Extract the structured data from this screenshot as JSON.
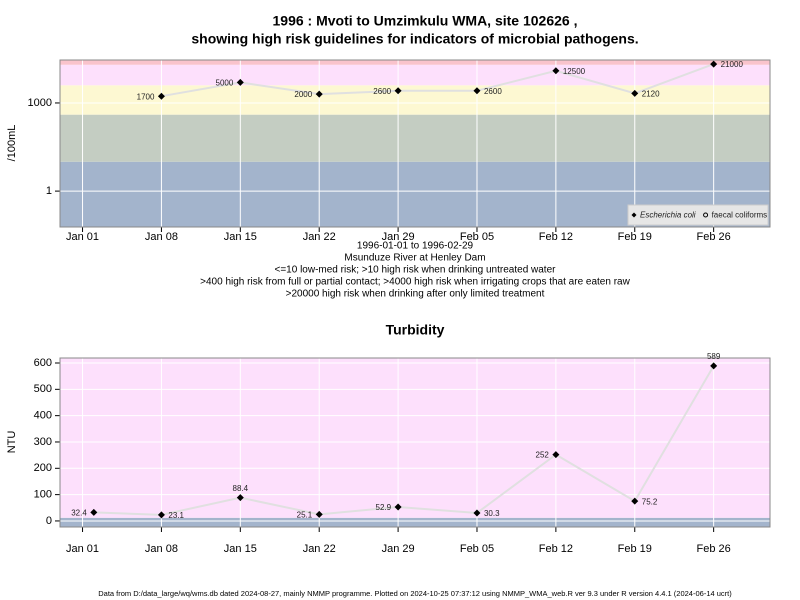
{
  "chart_data": [
    {
      "type": "line",
      "title": [
        "1996 : Mvoti to Umzimkulu WMA, site 102626 ,",
        "showing high risk guidelines for indicators of microbial pathogens."
      ],
      "notes": [
        "1996-01-01 to 1996-02-29",
        "Msunduze River at Henley Dam",
        "<=10 low-med risk; >10 high risk when drinking untreated water",
        ">400 high risk from full or partial contact; >4000 high risk when irrigating crops that are eaten raw",
        ">20000 high risk when drinking after only limited treatment"
      ],
      "ylabel": "/100mL",
      "log_scale": true,
      "x": [
        "1996-01-08",
        "1996-01-15",
        "1996-01-22",
        "1996-01-29",
        "1996-02-05",
        "1996-02-12",
        "1996-02-19",
        "1996-02-26"
      ],
      "series": [
        {
          "name": "Escherichia coli",
          "color": "#000000",
          "line_color": "#e0e0e0",
          "values": [
            1700,
            5000,
            2000,
            2600,
            2600,
            12500,
            2120,
            21000
          ]
        },
        {
          "name": "faecal coliforms",
          "color": "#000000",
          "line_color": "#e0e0e0",
          "values": [
            null,
            null,
            null,
            null,
            null,
            null,
            null,
            null
          ]
        }
      ],
      "xlim": [
        "1995-12-30",
        "1996-03-02"
      ],
      "xticks": [
        {
          "value": "1996-01-01",
          "label": "Jan 01"
        },
        {
          "value": "1996-01-08",
          "label": "Jan 08"
        },
        {
          "value": "1996-01-15",
          "label": "Jan 15"
        },
        {
          "value": "1996-01-22",
          "label": "Jan 22"
        },
        {
          "value": "1996-01-29",
          "label": "Jan 29"
        },
        {
          "value": "1996-02-05",
          "label": "Feb 05"
        },
        {
          "value": "1996-02-12",
          "label": "Feb 12"
        },
        {
          "value": "1996-02-19",
          "label": "Feb 19"
        },
        {
          "value": "1996-02-26",
          "label": "Feb 26"
        }
      ],
      "ylim": [
        0.06,
        29000
      ],
      "yticks": [
        1,
        1000
      ],
      "bands": [
        {
          "from": 0.06,
          "to": 10,
          "color": "#a3b4cc"
        },
        {
          "from": 10,
          "to": 400,
          "color": "#c4cdc2"
        },
        {
          "from": 400,
          "to": 4000,
          "color": "#fdf8d2"
        },
        {
          "from": 4000,
          "to": 20000,
          "color": "#fde0fc"
        },
        {
          "from": 20000,
          "to": 29000,
          "color": "#f9c3cc"
        }
      ],
      "grid": true,
      "legend": "bottom-right"
    },
    {
      "type": "line",
      "title": "Turbidity",
      "ylabel": "NTU",
      "x": [
        "1996-01-02",
        "1996-01-08",
        "1996-01-15",
        "1996-01-22",
        "1996-01-29",
        "1996-02-05",
        "1996-02-12",
        "1996-02-19",
        "1996-02-26"
      ],
      "values": [
        32.4,
        23.1,
        88.4,
        25.1,
        52.9,
        30.3,
        252,
        75.2,
        589
      ],
      "color": "#000000",
      "line_color": "#e0e0e0",
      "xlim": [
        "1995-12-30",
        "1996-03-02"
      ],
      "xticks": [
        {
          "value": "1996-01-01",
          "label": "Jan 01"
        },
        {
          "value": "1996-01-08",
          "label": "Jan 08"
        },
        {
          "value": "1996-01-15",
          "label": "Jan 15"
        },
        {
          "value": "1996-01-22",
          "label": "Jan 22"
        },
        {
          "value": "1996-01-29",
          "label": "Jan 29"
        },
        {
          "value": "1996-02-05",
          "label": "Feb 05"
        },
        {
          "value": "1996-02-12",
          "label": "Feb 12"
        },
        {
          "value": "1996-02-19",
          "label": "Feb 19"
        },
        {
          "value": "1996-02-26",
          "label": "Feb 26"
        }
      ],
      "ylim": [
        -23,
        619
      ],
      "yticks": [
        0,
        100,
        200,
        300,
        400,
        500,
        600
      ],
      "bands": [
        {
          "from": -23,
          "to": 12,
          "color": "#a3b4cc"
        },
        {
          "from": 12,
          "to": 619,
          "color": "#fde0fc"
        }
      ],
      "grid": true
    }
  ],
  "footer": "Data from D:/data_large/wq/wms.db dated 2024-08-27, mainly NMMP programme. Plotted on 2024-10-25 07:37:12 using NMMP_WMA_web.R ver 9.3 under R version 4.4.1 (2024-06-14 ucrt)"
}
